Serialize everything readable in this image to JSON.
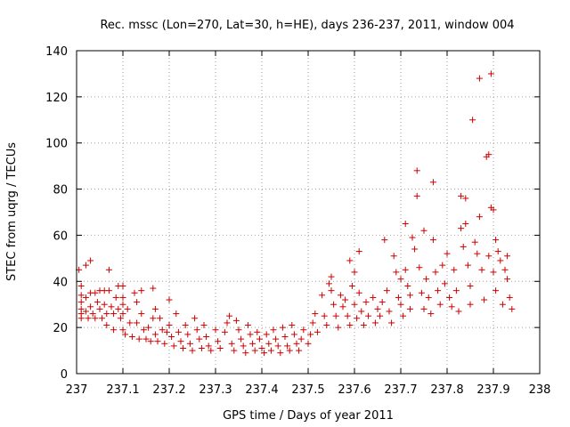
{
  "chart_data": {
    "type": "scatter",
    "title": "Rec. mssc (Lon=270, Lat=30, h=HE), days 236-237, 2011, window 004",
    "xlabel": "GPS time / Days of year 2011",
    "ylabel": "STEC from uqrg / TECUs",
    "xlim": [
      237,
      238
    ],
    "ylim": [
      0,
      140
    ],
    "xticks": [
      237,
      237.1,
      237.2,
      237.3,
      237.4,
      237.5,
      237.6,
      237.7,
      237.8,
      237.9,
      238
    ],
    "xtick_labels": [
      "237",
      "237.1",
      "237.2",
      "237.3",
      "237.4",
      "237.5",
      "237.6",
      "237.7",
      "237.8",
      "237.9",
      "238"
    ],
    "yticks": [
      0,
      20,
      40,
      60,
      80,
      100,
      120,
      140
    ],
    "ytick_labels": [
      "0",
      "20",
      "40",
      "60",
      "80",
      "100",
      "120",
      "140"
    ],
    "grid": true,
    "marker": "+",
    "color": "#cc0000",
    "series": [
      {
        "points": [
          [
            237.005,
            45
          ],
          [
            237.01,
            38
          ],
          [
            237.01,
            34
          ],
          [
            237.01,
            31
          ],
          [
            237.01,
            28
          ],
          [
            237.01,
            26
          ],
          [
            237.01,
            24
          ],
          [
            237.02,
            47
          ],
          [
            237.02,
            33
          ],
          [
            237.02,
            27
          ],
          [
            237.025,
            24
          ],
          [
            237.03,
            49
          ],
          [
            237.03,
            35
          ],
          [
            237.03,
            29
          ],
          [
            237.035,
            26
          ],
          [
            237.04,
            24
          ],
          [
            237.04,
            35
          ],
          [
            237.045,
            31
          ],
          [
            237.05,
            36
          ],
          [
            237.05,
            28
          ],
          [
            237.055,
            24
          ],
          [
            237.06,
            36
          ],
          [
            237.06,
            30
          ],
          [
            237.065,
            26
          ],
          [
            237.065,
            21
          ],
          [
            237.07,
            45
          ],
          [
            237.07,
            36
          ],
          [
            237.075,
            29
          ],
          [
            237.08,
            26
          ],
          [
            237.08,
            19
          ],
          [
            237.085,
            33
          ],
          [
            237.09,
            38
          ],
          [
            237.09,
            28
          ],
          [
            237.095,
            24
          ],
          [
            237.1,
            38
          ],
          [
            237.1,
            33
          ],
          [
            237.1,
            30
          ],
          [
            237.1,
            26
          ],
          [
            237.1,
            19
          ],
          [
            237.105,
            17
          ],
          [
            237.11,
            28
          ],
          [
            237.115,
            22
          ],
          [
            237.12,
            16
          ],
          [
            237.125,
            35
          ],
          [
            237.13,
            31
          ],
          [
            237.13,
            22
          ],
          [
            237.135,
            15
          ],
          [
            237.14,
            36
          ],
          [
            237.14,
            26
          ],
          [
            237.145,
            19
          ],
          [
            237.15,
            15
          ],
          [
            237.155,
            20
          ],
          [
            237.16,
            14
          ],
          [
            237.165,
            37
          ],
          [
            237.165,
            24
          ],
          [
            237.17,
            28
          ],
          [
            237.17,
            17
          ],
          [
            237.175,
            14
          ],
          [
            237.18,
            24
          ],
          [
            237.185,
            19
          ],
          [
            237.19,
            13
          ],
          [
            237.195,
            18
          ],
          [
            237.2,
            32
          ],
          [
            237.2,
            21
          ],
          [
            237.205,
            16
          ],
          [
            237.21,
            12
          ],
          [
            237.215,
            26
          ],
          [
            237.22,
            18
          ],
          [
            237.225,
            14
          ],
          [
            237.23,
            11
          ],
          [
            237.235,
            21
          ],
          [
            237.24,
            17
          ],
          [
            237.245,
            13
          ],
          [
            237.25,
            10
          ],
          [
            237.255,
            24
          ],
          [
            237.26,
            19
          ],
          [
            237.265,
            15
          ],
          [
            237.27,
            11
          ],
          [
            237.275,
            21
          ],
          [
            237.28,
            16
          ],
          [
            237.285,
            12
          ],
          [
            237.29,
            10
          ],
          [
            237.3,
            19
          ],
          [
            237.305,
            14
          ],
          [
            237.31,
            11
          ],
          [
            237.32,
            18
          ],
          [
            237.325,
            22
          ],
          [
            237.33,
            25
          ],
          [
            237.335,
            13
          ],
          [
            237.34,
            10
          ],
          [
            237.345,
            23
          ],
          [
            237.35,
            19
          ],
          [
            237.355,
            15
          ],
          [
            237.36,
            12
          ],
          [
            237.365,
            9
          ],
          [
            237.37,
            21
          ],
          [
            237.375,
            17
          ],
          [
            237.38,
            13
          ],
          [
            237.385,
            10
          ],
          [
            237.39,
            18
          ],
          [
            237.395,
            15
          ],
          [
            237.4,
            11
          ],
          [
            237.405,
            9
          ],
          [
            237.41,
            17
          ],
          [
            237.415,
            13
          ],
          [
            237.42,
            10
          ],
          [
            237.425,
            19
          ],
          [
            237.43,
            15
          ],
          [
            237.435,
            12
          ],
          [
            237.44,
            9
          ],
          [
            237.445,
            20
          ],
          [
            237.45,
            16
          ],
          [
            237.455,
            12
          ],
          [
            237.46,
            10
          ],
          [
            237.465,
            21
          ],
          [
            237.47,
            17
          ],
          [
            237.475,
            13
          ],
          [
            237.48,
            10
          ],
          [
            237.485,
            15
          ],
          [
            237.49,
            19
          ],
          [
            237.5,
            13
          ],
          [
            237.505,
            17
          ],
          [
            237.51,
            22
          ],
          [
            237.515,
            26
          ],
          [
            237.52,
            18
          ],
          [
            237.53,
            34
          ],
          [
            237.535,
            25
          ],
          [
            237.54,
            21
          ],
          [
            237.545,
            39
          ],
          [
            237.55,
            42
          ],
          [
            237.55,
            36
          ],
          [
            237.555,
            30
          ],
          [
            237.56,
            25
          ],
          [
            237.565,
            20
          ],
          [
            237.57,
            34
          ],
          [
            237.575,
            29
          ],
          [
            237.58,
            32
          ],
          [
            237.585,
            25
          ],
          [
            237.59,
            21
          ],
          [
            237.59,
            49
          ],
          [
            237.595,
            38
          ],
          [
            237.6,
            44
          ],
          [
            237.6,
            30
          ],
          [
            237.605,
            24
          ],
          [
            237.61,
            53
          ],
          [
            237.61,
            35
          ],
          [
            237.615,
            27
          ],
          [
            237.62,
            21
          ],
          [
            237.625,
            31
          ],
          [
            237.63,
            25
          ],
          [
            237.64,
            33
          ],
          [
            237.645,
            22
          ],
          [
            237.65,
            28
          ],
          [
            237.655,
            25
          ],
          [
            237.66,
            31
          ],
          [
            237.665,
            58
          ],
          [
            237.67,
            36
          ],
          [
            237.675,
            27
          ],
          [
            237.68,
            22
          ],
          [
            237.685,
            51
          ],
          [
            237.69,
            44
          ],
          [
            237.695,
            33
          ],
          [
            237.7,
            41
          ],
          [
            237.7,
            30
          ],
          [
            237.705,
            25
          ],
          [
            237.71,
            65
          ],
          [
            237.71,
            45
          ],
          [
            237.715,
            38
          ],
          [
            237.72,
            34
          ],
          [
            237.72,
            28
          ],
          [
            237.725,
            59
          ],
          [
            237.73,
            54
          ],
          [
            237.735,
            77
          ],
          [
            237.735,
            88
          ],
          [
            237.74,
            46
          ],
          [
            237.745,
            35
          ],
          [
            237.75,
            62
          ],
          [
            237.75,
            28
          ],
          [
            237.755,
            41
          ],
          [
            237.76,
            33
          ],
          [
            237.765,
            26
          ],
          [
            237.77,
            83
          ],
          [
            237.77,
            58
          ],
          [
            237.775,
            44
          ],
          [
            237.78,
            36
          ],
          [
            237.785,
            30
          ],
          [
            237.79,
            47
          ],
          [
            237.795,
            39
          ],
          [
            237.8,
            52
          ],
          [
            237.805,
            33
          ],
          [
            237.81,
            29
          ],
          [
            237.815,
            45
          ],
          [
            237.82,
            36
          ],
          [
            237.825,
            27
          ],
          [
            237.83,
            77
          ],
          [
            237.83,
            63
          ],
          [
            237.835,
            55
          ],
          [
            237.84,
            76
          ],
          [
            237.84,
            65
          ],
          [
            237.845,
            47
          ],
          [
            237.85,
            38
          ],
          [
            237.85,
            30
          ],
          [
            237.855,
            110
          ],
          [
            237.86,
            57
          ],
          [
            237.865,
            52
          ],
          [
            237.87,
            128
          ],
          [
            237.87,
            68
          ],
          [
            237.875,
            45
          ],
          [
            237.88,
            32
          ],
          [
            237.885,
            94
          ],
          [
            237.89,
            95
          ],
          [
            237.89,
            51
          ],
          [
            237.895,
            130
          ],
          [
            237.895,
            72
          ],
          [
            237.9,
            71
          ],
          [
            237.9,
            44
          ],
          [
            237.905,
            58
          ],
          [
            237.905,
            36
          ],
          [
            237.91,
            53
          ],
          [
            237.915,
            49
          ],
          [
            237.92,
            30
          ],
          [
            237.925,
            45
          ],
          [
            237.93,
            41
          ],
          [
            237.93,
            51
          ],
          [
            237.935,
            33
          ],
          [
            237.94,
            28
          ]
        ]
      }
    ]
  }
}
